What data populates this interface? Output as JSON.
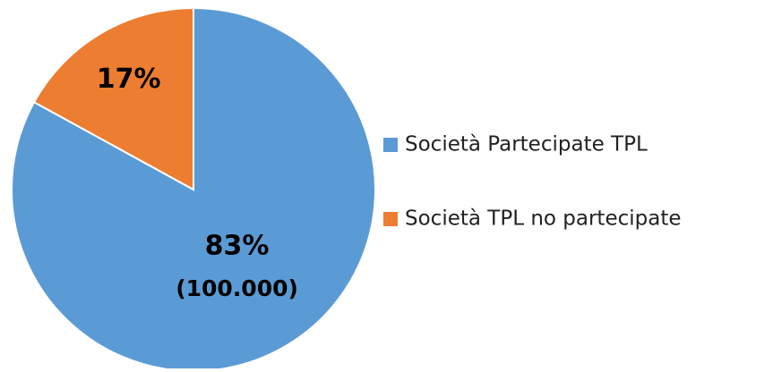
{
  "chart_data": {
    "type": "pie",
    "categories": [
      "Società Partecipate TPL",
      "Società TPL no partecipate"
    ],
    "values": [
      83,
      17
    ],
    "value_labels": [
      "83%",
      "17%"
    ],
    "colors": [
      "#5b9bd5",
      "#ed7d31"
    ],
    "annotation": "(100.000)",
    "legend": "right"
  }
}
